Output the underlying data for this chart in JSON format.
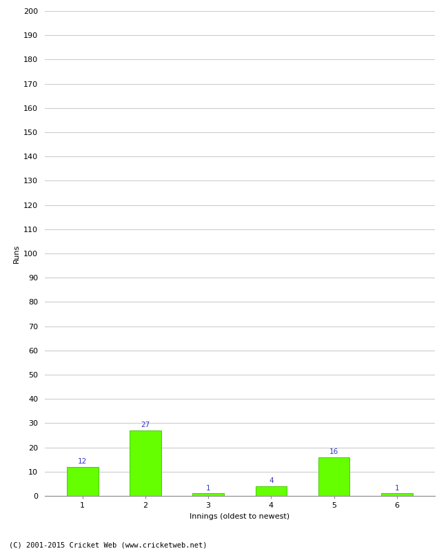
{
  "xlabel": "Innings (oldest to newest)",
  "ylabel": "Runs",
  "categories": [
    "1",
    "2",
    "3",
    "4",
    "5",
    "6"
  ],
  "values": [
    12,
    27,
    1,
    4,
    16,
    1
  ],
  "bar_color": "#66ff00",
  "bar_edge_color": "#44cc00",
  "label_color": "#3333cc",
  "ylim": [
    0,
    200
  ],
  "yticks": [
    0,
    10,
    20,
    30,
    40,
    50,
    60,
    70,
    80,
    90,
    100,
    110,
    120,
    130,
    140,
    150,
    160,
    170,
    180,
    190,
    200
  ],
  "background_color": "#ffffff",
  "grid_color": "#cccccc",
  "footer": "(C) 2001-2015 Cricket Web (www.cricketweb.net)",
  "label_fontsize": 7.5,
  "axis_tick_fontsize": 8,
  "axis_label_fontsize": 8,
  "footer_fontsize": 7.5
}
